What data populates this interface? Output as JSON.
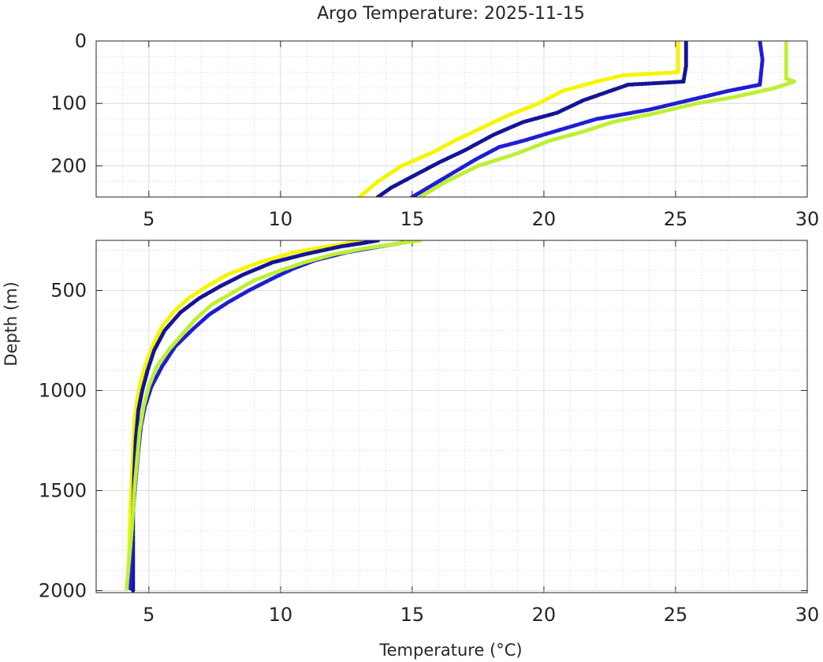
{
  "chart_data": {
    "type": "scatter",
    "title": "Argo Temperature: 2025-11-15",
    "xlabel": "Temperature (°C)",
    "ylabel": "Depth (m)",
    "y_reversed": true,
    "grid": true,
    "minor_grid": true,
    "xticks": [
      "5",
      "10",
      "15",
      "20",
      "25",
      "30"
    ],
    "panels": [
      {
        "name": "upper",
        "xlim": [
          3,
          30
        ],
        "ylim": [
          0,
          250
        ],
        "yticks": [
          "0",
          "100",
          "200"
        ]
      },
      {
        "name": "lower",
        "xlim": [
          3,
          30
        ],
        "ylim": [
          250,
          2010
        ],
        "yticks": [
          "500",
          "1000",
          "1500",
          "2000"
        ]
      }
    ],
    "series": [
      {
        "color": "#f5f500",
        "points": [
          [
            25.1,
            0
          ],
          [
            25.1,
            50
          ],
          [
            23.0,
            55
          ],
          [
            22.0,
            65
          ],
          [
            20.7,
            80
          ],
          [
            19.8,
            100
          ],
          [
            18.6,
            120
          ],
          [
            17.6,
            140
          ],
          [
            16.6,
            160
          ],
          [
            15.7,
            180
          ],
          [
            14.6,
            200
          ],
          [
            13.7,
            225
          ],
          [
            13.0,
            250
          ],
          [
            12.5,
            265
          ],
          [
            11.8,
            280
          ],
          [
            10.5,
            310
          ],
          [
            9.2,
            360
          ],
          [
            8.0,
            420
          ],
          [
            7.2,
            480
          ],
          [
            6.5,
            540
          ],
          [
            6.0,
            600
          ],
          [
            5.5,
            680
          ],
          [
            5.2,
            760
          ],
          [
            4.9,
            860
          ],
          [
            4.7,
            950
          ],
          [
            4.55,
            1050
          ],
          [
            4.45,
            1150
          ],
          [
            4.4,
            1300
          ],
          [
            4.35,
            1450
          ],
          [
            4.3,
            1600
          ],
          [
            4.25,
            1800
          ],
          [
            4.2,
            2000
          ]
        ]
      },
      {
        "color": "#141496",
        "points": [
          [
            25.4,
            0
          ],
          [
            25.4,
            40
          ],
          [
            25.3,
            65
          ],
          [
            23.2,
            70
          ],
          [
            21.5,
            95
          ],
          [
            20.5,
            115
          ],
          [
            19.2,
            130
          ],
          [
            18.1,
            150
          ],
          [
            17.0,
            175
          ],
          [
            16.0,
            195
          ],
          [
            15.1,
            215
          ],
          [
            14.2,
            235
          ],
          [
            13.7,
            250
          ],
          [
            13.2,
            262
          ],
          [
            12.3,
            280
          ],
          [
            10.9,
            320
          ],
          [
            9.7,
            360
          ],
          [
            8.6,
            420
          ],
          [
            7.7,
            480
          ],
          [
            6.9,
            540
          ],
          [
            6.2,
            610
          ],
          [
            5.6,
            700
          ],
          [
            5.2,
            800
          ],
          [
            4.95,
            900
          ],
          [
            4.75,
            1000
          ],
          [
            4.6,
            1100
          ],
          [
            4.5,
            1250
          ],
          [
            4.45,
            1400
          ],
          [
            4.4,
            1600
          ],
          [
            4.4,
            1800
          ],
          [
            4.4,
            2010
          ]
        ]
      },
      {
        "color": "#1e1ed2",
        "points": [
          [
            28.2,
            0
          ],
          [
            28.3,
            30
          ],
          [
            28.2,
            70
          ],
          [
            27.0,
            80
          ],
          [
            25.5,
            95
          ],
          [
            24.0,
            110
          ],
          [
            22.0,
            125
          ],
          [
            20.8,
            140
          ],
          [
            19.2,
            160
          ],
          [
            18.3,
            170
          ],
          [
            17.4,
            190
          ],
          [
            16.4,
            215
          ],
          [
            15.6,
            235
          ],
          [
            15.0,
            250
          ],
          [
            14.5,
            265
          ],
          [
            13.8,
            280
          ],
          [
            12.5,
            310
          ],
          [
            11.3,
            350
          ],
          [
            10.5,
            390
          ],
          [
            9.7,
            440
          ],
          [
            8.8,
            500
          ],
          [
            8.0,
            560
          ],
          [
            7.3,
            620
          ],
          [
            6.7,
            690
          ],
          [
            6.0,
            780
          ],
          [
            5.5,
            880
          ],
          [
            5.1,
            980
          ],
          [
            4.85,
            1080
          ],
          [
            4.7,
            1180
          ],
          [
            4.6,
            1300
          ],
          [
            4.5,
            1450
          ],
          [
            4.4,
            1600
          ],
          [
            4.35,
            1800
          ],
          [
            4.3,
            2000
          ]
        ]
      },
      {
        "color": "#bef032",
        "points": [
          [
            29.2,
            0
          ],
          [
            29.2,
            60
          ],
          [
            29.5,
            65
          ],
          [
            28.8,
            75
          ],
          [
            27.2,
            90
          ],
          [
            25.8,
            100
          ],
          [
            24.3,
            115
          ],
          [
            22.6,
            130
          ],
          [
            21.5,
            145
          ],
          [
            20.2,
            160
          ],
          [
            19.0,
            180
          ],
          [
            17.5,
            200
          ],
          [
            16.3,
            225
          ],
          [
            15.3,
            250
          ],
          [
            14.5,
            265
          ],
          [
            13.2,
            290
          ],
          [
            12.0,
            320
          ],
          [
            10.9,
            360
          ],
          [
            10.0,
            400
          ],
          [
            9.0,
            450
          ],
          [
            8.2,
            510
          ],
          [
            7.4,
            570
          ],
          [
            6.8,
            640
          ],
          [
            6.4,
            700
          ],
          [
            5.8,
            790
          ],
          [
            5.3,
            880
          ],
          [
            5.0,
            980
          ],
          [
            4.8,
            1080
          ],
          [
            4.65,
            1200
          ],
          [
            4.55,
            1350
          ],
          [
            4.45,
            1500
          ],
          [
            4.35,
            1700
          ],
          [
            4.25,
            1850
          ],
          [
            4.15,
            2000
          ]
        ]
      }
    ]
  }
}
